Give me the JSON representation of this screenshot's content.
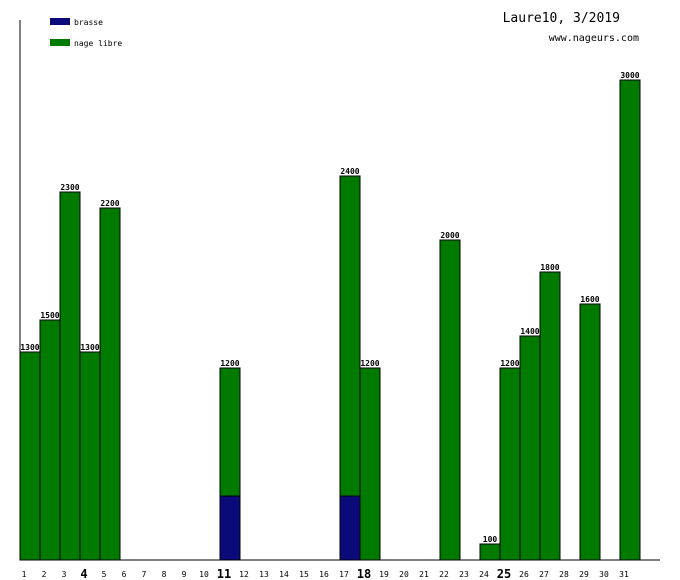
{
  "chart_data": {
    "type": "bar",
    "stacked": true,
    "title": "Laure10, 3/2019",
    "subtitle": "www.nageurs.com",
    "legend": [
      {
        "name": "brasse",
        "color": "#0a0a7a"
      },
      {
        "name": "nage libre",
        "color": "#007a00"
      }
    ],
    "legend_placement": "top-left",
    "grid": false,
    "ylim": [
      0,
      3000
    ],
    "categories": [
      "1",
      "2",
      "3",
      "4",
      "5",
      "6",
      "7",
      "8",
      "9",
      "10",
      "11",
      "12",
      "13",
      "14",
      "15",
      "16",
      "17",
      "18",
      "19",
      "20",
      "21",
      "22",
      "23",
      "24",
      "25",
      "26",
      "27",
      "28",
      "29",
      "30",
      "31"
    ],
    "bold_categories": [
      "4",
      "11",
      "18",
      "25"
    ],
    "series": [
      {
        "name": "brasse",
        "color": "#0a0a7a",
        "values": [
          0,
          0,
          0,
          0,
          0,
          0,
          0,
          0,
          0,
          0,
          400,
          0,
          0,
          0,
          0,
          0,
          400,
          0,
          0,
          0,
          0,
          0,
          0,
          0,
          0,
          0,
          0,
          0,
          0,
          0,
          0
        ]
      },
      {
        "name": "nage libre",
        "color": "#007a00",
        "values": [
          1300,
          1500,
          2300,
          1300,
          2200,
          0,
          0,
          0,
          0,
          0,
          800,
          0,
          0,
          0,
          0,
          0,
          2000,
          1200,
          0,
          0,
          0,
          2000,
          0,
          100,
          1200,
          1400,
          1800,
          0,
          1600,
          0,
          3000
        ]
      }
    ],
    "totals": [
      1300,
      1500,
      2300,
      1300,
      2200,
      0,
      0,
      0,
      0,
      0,
      1200,
      0,
      0,
      0,
      0,
      0,
      2400,
      1200,
      0,
      0,
      0,
      2000,
      0,
      100,
      1200,
      1400,
      1800,
      0,
      1600,
      0,
      3000
    ]
  }
}
